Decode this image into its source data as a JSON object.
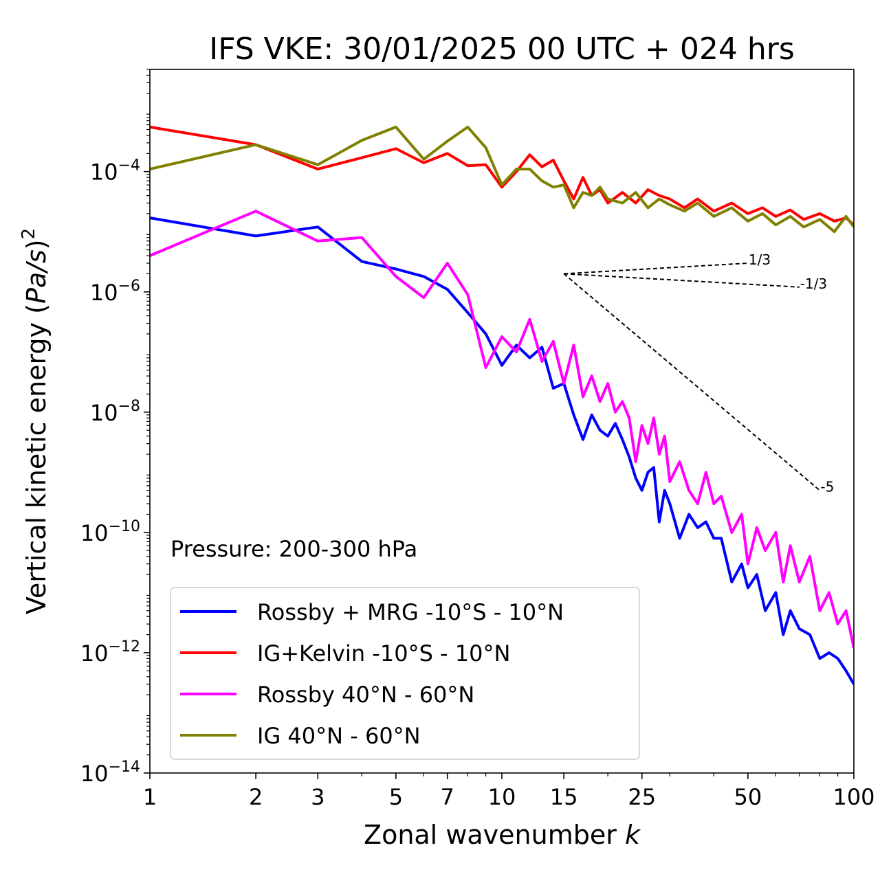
{
  "chart_data": {
    "type": "line",
    "title": "IFS VKE: 30/01/2025 00 UTC + 024 hrs",
    "xlabel": "Zonal wavenumber k",
    "xlabel_main": "Zonal wavenumber ",
    "xlabel_var": "k",
    "ylabel": "Vertical kinetic energy (Pa/s)^2",
    "ylabel_main": "Vertical kinetic energy (",
    "ylabel_var": "Pa/s",
    "ylabel_close": ")",
    "ylabel_exp": "2",
    "x_scale": "log",
    "y_scale": "log",
    "xlim": [
      1,
      100
    ],
    "ylim": [
      1e-14,
      0.005
    ],
    "x_ticks": [
      {
        "value": 1,
        "label": "1"
      },
      {
        "value": 2,
        "label": "2"
      },
      {
        "value": 3,
        "label": "3"
      },
      {
        "value": 5,
        "label": "5"
      },
      {
        "value": 7,
        "label": "7"
      },
      {
        "value": 10,
        "label": "10"
      },
      {
        "value": 15,
        "label": "15"
      },
      {
        "value": 25,
        "label": "25"
      },
      {
        "value": 50,
        "label": "50"
      },
      {
        "value": 100,
        "label": "100"
      }
    ],
    "y_ticks": [
      {
        "exp": -4,
        "base": "10",
        "sup": "−4"
      },
      {
        "exp": -6,
        "base": "10",
        "sup": "−6"
      },
      {
        "exp": -8,
        "base": "10",
        "sup": "−8"
      },
      {
        "exp": -10,
        "base": "10",
        "sup": "−10"
      },
      {
        "exp": -12,
        "base": "10",
        "sup": "−12"
      },
      {
        "exp": -14,
        "base": "10",
        "sup": "−14"
      }
    ],
    "annotation": "Pressure: 200-300 hPa",
    "legend_position": "lower-left",
    "reference_slopes": [
      {
        "label": "1/3",
        "x": [
          15,
          50
        ],
        "y": [
          2e-06,
          3e-06
        ]
      },
      {
        "label": "-1/3",
        "x": [
          15,
          70
        ],
        "y": [
          2e-06,
          1.2e-06
        ]
      },
      {
        "label": "-5",
        "x": [
          15,
          80
        ],
        "y": [
          2e-06,
          5e-10
        ]
      }
    ],
    "series": [
      {
        "name": "Rossby + MRG -10°S - 10°N",
        "color": "#0000ff",
        "x": [
          1,
          2,
          3,
          4,
          5,
          6,
          7,
          8,
          9,
          10,
          11,
          12,
          13,
          14,
          15,
          16,
          17,
          18,
          19,
          20,
          21,
          22,
          23,
          24,
          25,
          26,
          27,
          28,
          29,
          30,
          32,
          34,
          36,
          38,
          40,
          42,
          45,
          48,
          50,
          53,
          56,
          60,
          63,
          66,
          70,
          75,
          80,
          85,
          90,
          95,
          100
        ],
        "y": [
          1.7e-05,
          8.5e-06,
          1.2e-05,
          3.2e-06,
          2.4e-06,
          1.8e-06,
          1.1e-06,
          4.5e-07,
          2e-07,
          6e-08,
          1.3e-07,
          8e-08,
          1.2e-07,
          2.5e-08,
          3e-08,
          9e-09,
          3.5e-09,
          9e-09,
          5e-09,
          4e-09,
          6.5e-09,
          3.5e-09,
          1.8e-09,
          8e-10,
          5e-10,
          1e-09,
          1.2e-09,
          1.5e-10,
          5e-10,
          3e-10,
          8e-11,
          2e-10,
          1.2e-10,
          1.5e-10,
          8e-11,
          8e-11,
          1.5e-11,
          3e-11,
          1.2e-11,
          2e-11,
          5e-12,
          1e-11,
          2e-12,
          5e-12,
          2.5e-12,
          2e-12,
          8e-13,
          1e-12,
          8e-13,
          5e-13,
          3e-13
        ]
      },
      {
        "name": "IG+Kelvin -10°S - 10°N",
        "color": "#ff0000",
        "x": [
          1,
          2,
          3,
          4,
          5,
          6,
          7,
          8,
          9,
          10,
          11,
          12,
          13,
          14,
          15,
          16,
          17,
          18,
          19,
          20,
          22,
          24,
          26,
          28,
          30,
          33,
          36,
          40,
          45,
          50,
          55,
          60,
          66,
          72,
          80,
          88,
          95,
          100
        ],
        "y": [
          0.00055,
          0.00028,
          0.00011,
          0.00017,
          0.00024,
          0.00014,
          0.0002,
          0.000125,
          0.00013,
          5.5e-05,
          0.0001,
          0.00019,
          0.00012,
          0.000155,
          7e-05,
          3.5e-05,
          8e-05,
          4e-05,
          5e-05,
          3e-05,
          4.5e-05,
          3e-05,
          5e-05,
          4e-05,
          3.5e-05,
          2.5e-05,
          3.5e-05,
          2.2e-05,
          3e-05,
          2e-05,
          2.5e-05,
          1.8e-05,
          2.3e-05,
          1.6e-05,
          2e-05,
          1.5e-05,
          1.7e-05,
          1.3e-05
        ]
      },
      {
        "name": "Rossby 40°N - 60°N",
        "color": "#ff00ff",
        "x": [
          1,
          2,
          3,
          4,
          5,
          6,
          7,
          8,
          9,
          10,
          11,
          12,
          13,
          14,
          15,
          16,
          17,
          18,
          19,
          20,
          21,
          22,
          23,
          24,
          25,
          26,
          27,
          28,
          29,
          30,
          32,
          34,
          36,
          38,
          40,
          42,
          45,
          48,
          50,
          53,
          56,
          60,
          63,
          66,
          70,
          75,
          80,
          85,
          90,
          95,
          100
        ],
        "y": [
          4e-06,
          2.2e-05,
          7e-06,
          8e-06,
          1.8e-06,
          8e-07,
          3e-06,
          9e-07,
          5.5e-08,
          1.8e-07,
          1e-07,
          3.5e-07,
          7e-08,
          1.5e-07,
          3e-08,
          1.3e-07,
          1.8e-08,
          4e-08,
          1.5e-08,
          3e-08,
          1e-08,
          1.5e-08,
          8e-09,
          1.5e-09,
          6e-09,
          3e-09,
          8e-09,
          2e-09,
          4e-09,
          7e-10,
          1.5e-09,
          5e-10,
          3e-10,
          1e-09,
          3e-10,
          4e-10,
          1e-10,
          2e-10,
          3e-11,
          1.2e-10,
          5e-11,
          1e-10,
          1.5e-11,
          6e-11,
          1.5e-11,
          4e-11,
          5e-12,
          1e-11,
          3e-12,
          5e-12,
          1.2e-12
        ]
      },
      {
        "name": "IG 40°N - 60°N",
        "color": "#808000",
        "x": [
          1,
          2,
          3,
          4,
          5,
          6,
          7,
          8,
          9,
          10,
          11,
          12,
          13,
          14,
          15,
          16,
          17,
          18,
          19,
          20,
          22,
          24,
          26,
          28,
          30,
          33,
          36,
          40,
          45,
          50,
          55,
          60,
          66,
          72,
          80,
          88,
          95,
          100
        ],
        "y": [
          0.00011,
          0.00028,
          0.00013,
          0.00033,
          0.00055,
          0.00016,
          0.00032,
          0.00055,
          0.00025,
          6e-05,
          0.00011,
          0.00011,
          7e-05,
          5.5e-05,
          6e-05,
          2.5e-05,
          4.5e-05,
          4e-05,
          5.5e-05,
          3.5e-05,
          3e-05,
          4.5e-05,
          2.5e-05,
          3.5e-05,
          2.8e-05,
          2.2e-05,
          3e-05,
          1.8e-05,
          2.5e-05,
          1.5e-05,
          2e-05,
          1.3e-05,
          1.8e-05,
          1.2e-05,
          1.6e-05,
          1e-05,
          1.8e-05,
          1.2e-05
        ]
      }
    ]
  }
}
